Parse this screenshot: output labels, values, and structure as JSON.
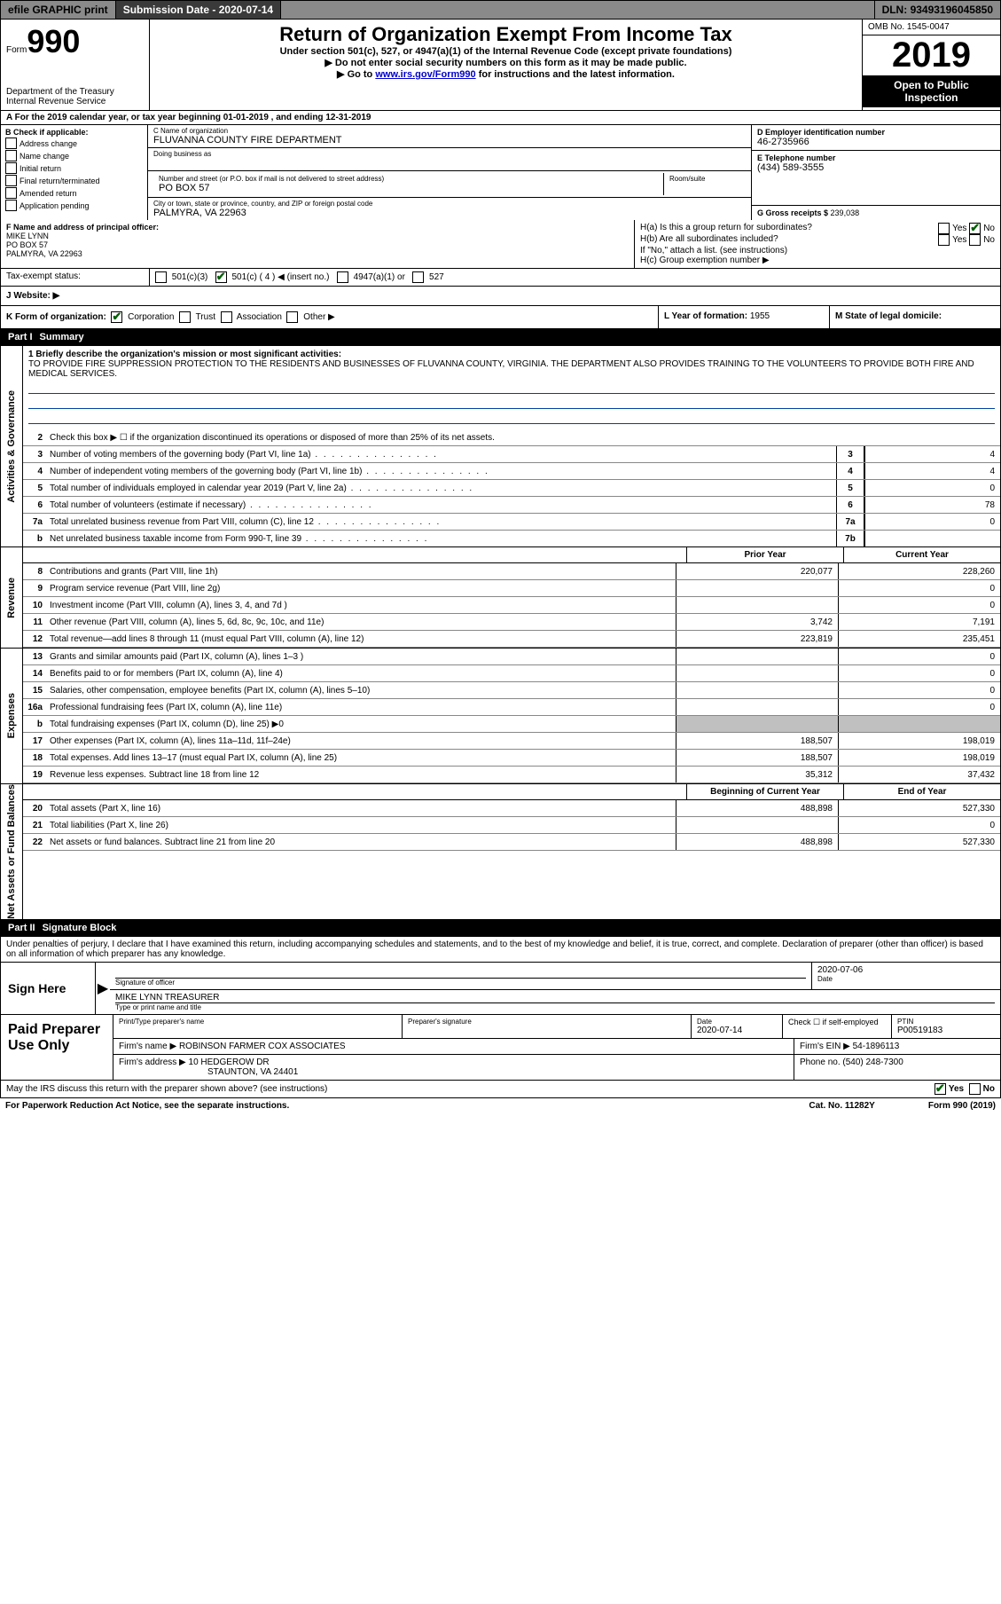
{
  "topbar": {
    "efile": "efile GRAPHIC print",
    "submission_label": "Submission Date - ",
    "submission_date": "2020-07-14",
    "dln_label": "DLN: ",
    "dln": "93493196045850"
  },
  "header": {
    "form_word": "Form",
    "form_num": "990",
    "dept": "Department of the Treasury\nInternal Revenue Service",
    "title": "Return of Organization Exempt From Income Tax",
    "sub1": "Under section 501(c), 527, or 4947(a)(1) of the Internal Revenue Code (except private foundations)",
    "sub2": "▶ Do not enter social security numbers on this form as it may be made public.",
    "sub3_pre": "▶ Go to ",
    "sub3_link": "www.irs.gov/Form990",
    "sub3_post": " for instructions and the latest information.",
    "omb": "OMB No. 1545-0047",
    "year": "2019",
    "open": "Open to Public Inspection"
  },
  "row_a": "A For the 2019 calendar year, or tax year beginning 01-01-2019     , and ending 12-31-2019",
  "col_b": {
    "hdr": "B Check if applicable:",
    "items": [
      "Address change",
      "Name change",
      "Initial return",
      "Final return/terminated",
      "Amended return",
      "Application pending"
    ]
  },
  "col_c": {
    "name_lbl": "C Name of organization",
    "name": "FLUVANNA COUNTY FIRE DEPARTMENT",
    "dba_lbl": "Doing business as",
    "addr_lbl": "Number and street (or P.O. box if mail is not delivered to street address)",
    "room_lbl": "Room/suite",
    "addr": "PO BOX 57",
    "city_lbl": "City or town, state or province, country, and ZIP or foreign postal code",
    "city": "PALMYRA, VA  22963"
  },
  "col_d": {
    "ein_lbl": "D Employer identification number",
    "ein": "46-2735966",
    "tel_lbl": "E Telephone number",
    "tel": "(434) 589-3555",
    "gross_lbl": "G Gross receipts $ ",
    "gross": "239,038"
  },
  "row_f": {
    "f_lbl": "F  Name and address of principal officer:",
    "f_name": "MIKE LYNN",
    "f_addr1": "PO BOX 57",
    "f_addr2": "PALMYRA, VA  22963",
    "ha": "H(a)  Is this a group return for subordinates?",
    "hb": "H(b)  Are all subordinates included?",
    "hb_note": "If \"No,\" attach a list. (see instructions)",
    "hc": "H(c)  Group exemption number ▶",
    "yes": "Yes",
    "no": "No"
  },
  "row_i": {
    "lbl": "Tax-exempt status:",
    "a": "501(c)(3)",
    "b": "501(c) ( 4 ) ◀ (insert no.)",
    "c": "4947(a)(1) or",
    "d": "527"
  },
  "row_j": "J   Website: ▶",
  "row_klm": {
    "k": "K Form of organization:",
    "k_corp": "Corporation",
    "k_trust": "Trust",
    "k_assoc": "Association",
    "k_other": "Other ▶",
    "l_lbl": "L Year of formation: ",
    "l_val": "1955",
    "m": "M State of legal domicile:"
  },
  "part1": {
    "num": "Part I",
    "title": "Summary"
  },
  "vlabels": [
    "Activities & Governance",
    "Revenue",
    "Expenses",
    "Net Assets or Fund Balances"
  ],
  "mission": {
    "lbl": "1  Briefly describe the organization's mission or most significant activities:",
    "text": "TO PROVIDE FIRE SUPPRESSION PROTECTION TO THE RESIDENTS AND BUSINESSES OF FLUVANNA COUNTY, VIRGINIA. THE DEPARTMENT ALSO PROVIDES TRAINING TO THE VOLUNTEERS TO PROVIDE BOTH FIRE AND MEDICAL SERVICES."
  },
  "ag_lines": [
    {
      "n": "2",
      "t": "Check this box ▶ ☐  if the organization discontinued its operations or disposed of more than 25% of its net assets.",
      "box": "",
      "v": ""
    },
    {
      "n": "3",
      "t": "Number of voting members of the governing body (Part VI, line 1a)",
      "box": "3",
      "v": "4"
    },
    {
      "n": "4",
      "t": "Number of independent voting members of the governing body (Part VI, line 1b)",
      "box": "4",
      "v": "4"
    },
    {
      "n": "5",
      "t": "Total number of individuals employed in calendar year 2019 (Part V, line 2a)",
      "box": "5",
      "v": "0"
    },
    {
      "n": "6",
      "t": "Total number of volunteers (estimate if necessary)",
      "box": "6",
      "v": "78"
    },
    {
      "n": "7a",
      "t": "Total unrelated business revenue from Part VIII, column (C), line 12",
      "box": "7a",
      "v": "0"
    },
    {
      "n": "b",
      "t": "Net unrelated business taxable income from Form 990-T, line 39",
      "box": "7b",
      "v": ""
    }
  ],
  "yr_hdr": {
    "py": "Prior Year",
    "cy": "Current Year"
  },
  "rev_lines": [
    {
      "n": "8",
      "t": "Contributions and grants (Part VIII, line 1h)",
      "py": "220,077",
      "cy": "228,260"
    },
    {
      "n": "9",
      "t": "Program service revenue (Part VIII, line 2g)",
      "py": "",
      "cy": "0"
    },
    {
      "n": "10",
      "t": "Investment income (Part VIII, column (A), lines 3, 4, and 7d )",
      "py": "",
      "cy": "0"
    },
    {
      "n": "11",
      "t": "Other revenue (Part VIII, column (A), lines 5, 6d, 8c, 9c, 10c, and 11e)",
      "py": "3,742",
      "cy": "7,191"
    },
    {
      "n": "12",
      "t": "Total revenue—add lines 8 through 11 (must equal Part VIII, column (A), line 12)",
      "py": "223,819",
      "cy": "235,451"
    }
  ],
  "exp_lines": [
    {
      "n": "13",
      "t": "Grants and similar amounts paid (Part IX, column (A), lines 1–3 )",
      "py": "",
      "cy": "0"
    },
    {
      "n": "14",
      "t": "Benefits paid to or for members (Part IX, column (A), line 4)",
      "py": "",
      "cy": "0"
    },
    {
      "n": "15",
      "t": "Salaries, other compensation, employee benefits (Part IX, column (A), lines 5–10)",
      "py": "",
      "cy": "0"
    },
    {
      "n": "16a",
      "t": "Professional fundraising fees (Part IX, column (A), line 11e)",
      "py": "",
      "cy": "0"
    },
    {
      "n": "b",
      "t": "Total fundraising expenses (Part IX, column (D), line 25) ▶0",
      "py": "shade",
      "cy": "shade"
    },
    {
      "n": "17",
      "t": "Other expenses (Part IX, column (A), lines 11a–11d, 11f–24e)",
      "py": "188,507",
      "cy": "198,019"
    },
    {
      "n": "18",
      "t": "Total expenses. Add lines 13–17 (must equal Part IX, column (A), line 25)",
      "py": "188,507",
      "cy": "198,019"
    },
    {
      "n": "19",
      "t": "Revenue less expenses. Subtract line 18 from line 12",
      "py": "35,312",
      "cy": "37,432"
    }
  ],
  "na_hdr": {
    "py": "Beginning of Current Year",
    "cy": "End of Year"
  },
  "na_lines": [
    {
      "n": "20",
      "t": "Total assets (Part X, line 16)",
      "py": "488,898",
      "cy": "527,330"
    },
    {
      "n": "21",
      "t": "Total liabilities (Part X, line 26)",
      "py": "",
      "cy": "0"
    },
    {
      "n": "22",
      "t": "Net assets or fund balances. Subtract line 21 from line 20",
      "py": "488,898",
      "cy": "527,330"
    }
  ],
  "part2": {
    "num": "Part II",
    "title": "Signature Block"
  },
  "sig": {
    "decl": "Under penalties of perjury, I declare that I have examined this return, including accompanying schedules and statements, and to the best of my knowledge and belief, it is true, correct, and complete. Declaration of preparer (other than officer) is based on all information of which preparer has any knowledge.",
    "sign_here": "Sign Here",
    "sig_off": "Signature of officer",
    "date_lbl": "Date",
    "date": "2020-07-06",
    "name": "MIKE LYNN  TREASURER",
    "name_lbl": "Type or print name and title"
  },
  "prep": {
    "lbl": "Paid Preparer Use Only",
    "r1": {
      "a": "Print/Type preparer's name",
      "b": "Preparer's signature",
      "c_lbl": "Date",
      "c": "2020-07-14",
      "d": "Check ☐ if self-employed",
      "e_lbl": "PTIN",
      "e": "P00519183"
    },
    "r2": {
      "a_lbl": "Firm's name      ▶ ",
      "a": "ROBINSON FARMER COX ASSOCIATES",
      "b_lbl": "Firm's EIN ▶ ",
      "b": "54-1896113"
    },
    "r3": {
      "a_lbl": "Firm's address ▶ ",
      "a1": "10 HEDGEROW DR",
      "a2": "STAUNTON, VA  24401",
      "b_lbl": "Phone no. ",
      "b": "(540) 248-7300"
    }
  },
  "footer": {
    "q": "May the IRS discuss this return with the preparer shown above? (see instructions)",
    "yes": "Yes",
    "no": "No",
    "pra": "For Paperwork Reduction Act Notice, see the separate instructions.",
    "cat": "Cat. No. 11282Y",
    "form": "Form 990 (2019)"
  }
}
